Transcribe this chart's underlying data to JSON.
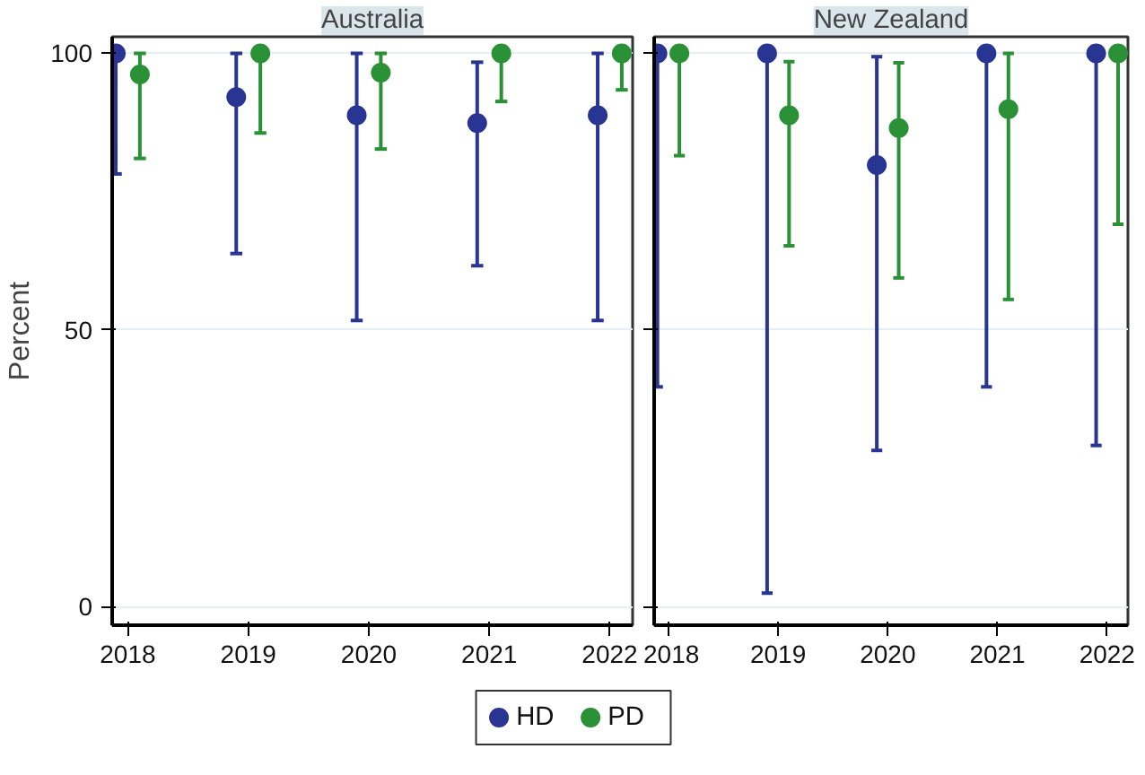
{
  "chart_data": [
    {
      "type": "scatter",
      "title": "Australia",
      "ylabel": "Percent",
      "categories": [
        "2018",
        "2019",
        "2020",
        "2021",
        "2022"
      ],
      "ylim": [
        -3.4,
        103
      ],
      "yticks": [
        0,
        50,
        100
      ],
      "grid": "y",
      "legend": "bottom",
      "marker": "circle",
      "series": [
        {
          "name": "HD",
          "color": "#283593",
          "values": [
            100,
            92.1,
            88.8,
            87.4,
            88.8
          ],
          "errors": [
            [
              78.2,
              100
            ],
            [
              63.8,
              100
            ],
            [
              51.7,
              100
            ],
            [
              61.6,
              98.4
            ],
            [
              51.7,
              100
            ]
          ]
        },
        {
          "name": "PD",
          "color": "#2a9136",
          "values": [
            96.2,
            100,
            96.5,
            100,
            100
          ],
          "errors": [
            [
              81.0,
              100
            ],
            [
              85.6,
              100
            ],
            [
              82.7,
              100
            ],
            [
              91.3,
              100
            ],
            [
              93.4,
              100
            ]
          ]
        }
      ]
    },
    {
      "type": "scatter",
      "title": "New Zealand",
      "categories": [
        "2018",
        "2019",
        "2020",
        "2021",
        "2022"
      ],
      "ylim": [
        -3.4,
        103
      ],
      "yticks": [
        0,
        50,
        100
      ],
      "grid": "y",
      "tick_labels": "x",
      "marker": "circle",
      "series": [
        {
          "color": "#283593",
          "values": [
            100,
            100,
            79.8,
            100,
            100
          ],
          "errors": [
            [
              39.7,
              100
            ],
            [
              2.4,
              100
            ],
            [
              28.2,
              99.4
            ],
            [
              39.7,
              100
            ],
            [
              29.1,
              100
            ]
          ]
        },
        {
          "color": "#2a9136",
          "values": [
            100,
            88.8,
            86.5,
            89.9,
            100
          ],
          "errors": [
            [
              81.5,
              100
            ],
            [
              65.2,
              98.5
            ],
            [
              59.4,
              98.3
            ],
            [
              55.5,
              100
            ],
            [
              69.1,
              100
            ]
          ]
        }
      ]
    }
  ]
}
